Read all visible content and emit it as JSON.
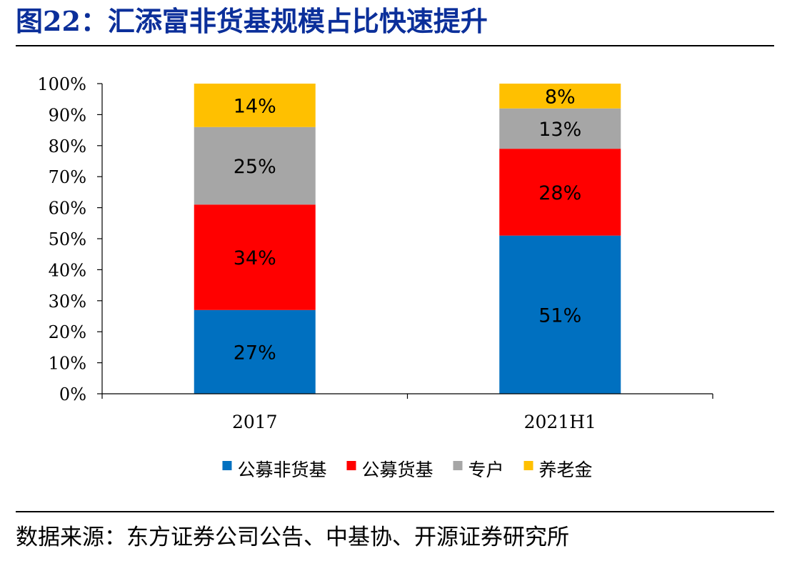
{
  "title": "图22：汇添富非货基规模占比快速提升",
  "source": "数据来源：东方证券公司公告、中基协、开源证券研究所",
  "chart_data": {
    "type": "bar",
    "stacked": true,
    "percent_stacked": true,
    "categories": [
      "2017",
      "2021H1"
    ],
    "series": [
      {
        "name": "公募非货基",
        "color": "#0070C0",
        "values": [
          27,
          51
        ],
        "labels": [
          "27%",
          "51%"
        ]
      },
      {
        "name": "公募货基",
        "color": "#FF0000",
        "values": [
          34,
          28
        ],
        "labels": [
          "34%",
          "28%"
        ]
      },
      {
        "name": "专户",
        "color": "#A6A6A6",
        "values": [
          25,
          13
        ],
        "labels": [
          "25%",
          "13%"
        ]
      },
      {
        "name": "养老金",
        "color": "#FFC000",
        "values": [
          14,
          8
        ],
        "labels": [
          "14%",
          "8%"
        ]
      }
    ],
    "ylim": [
      0,
      100
    ],
    "yticks": [
      "0%",
      "10%",
      "20%",
      "30%",
      "40%",
      "50%",
      "60%",
      "70%",
      "80%",
      "90%",
      "100%"
    ],
    "xlabel": "",
    "ylabel": "",
    "grid": false,
    "legend_position": "bottom"
  }
}
